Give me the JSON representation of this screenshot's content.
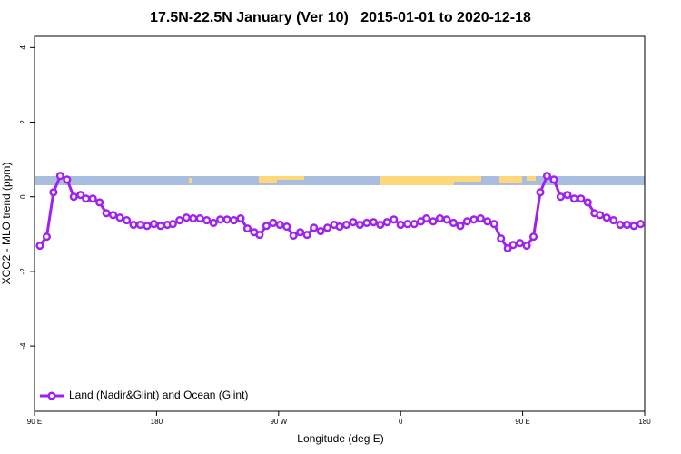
{
  "chart_data": {
    "type": "line",
    "title": "17.5N-22.5N January (Ver 10)   2015-01-01 to 2020-12-18",
    "xlabel": "Longitude (deg E)",
    "ylabel": "XCO2 - MLO trend (ppm)",
    "xlim": [
      90,
      540
    ],
    "ylim": [
      -5.75,
      4.3
    ],
    "xticks": [
      {
        "value": 90,
        "label": "90 E"
      },
      180,
      {
        "value": 270,
        "label": "90 W"
      },
      {
        "value": 360,
        "label": "0"
      },
      {
        "value": 450,
        "label": "90 E"
      },
      {
        "value": 540,
        "label": "180"
      }
    ],
    "yticks": [
      -4,
      -2,
      0,
      2,
      4
    ],
    "legend": "bottom-left",
    "x": [
      94,
      99,
      104,
      109,
      114,
      119,
      124,
      128,
      133,
      138,
      143,
      148,
      153,
      158,
      163,
      168,
      173,
      178,
      183,
      188,
      192,
      197,
      202,
      207,
      212,
      217,
      222,
      227,
      232,
      237,
      242,
      247,
      252,
      256,
      261,
      266,
      271,
      276,
      281,
      286,
      291,
      296,
      301,
      306,
      311,
      315,
      320,
      325,
      330,
      335,
      340,
      345,
      350,
      355,
      360,
      365,
      370,
      375,
      379,
      384,
      389,
      394,
      399,
      404,
      409,
      414,
      419,
      424,
      429,
      434,
      439,
      443,
      448,
      453,
      458,
      463,
      468,
      473,
      478,
      483,
      488,
      493,
      498,
      503,
      507,
      512,
      517,
      522,
      527,
      532,
      537
    ],
    "series": [
      {
        "name": "Land (Nadir&Glint) and Ocean (Glint)",
        "color": "#a020f0",
        "values": [
          -1.31,
          -1.07,
          0.12,
          0.56,
          0.46,
          0,
          0.05,
          -0.05,
          -0.05,
          -0.15,
          -0.44,
          -0.49,
          -0.56,
          -0.63,
          -0.75,
          -0.75,
          -0.78,
          -0.73,
          -0.78,
          -0.75,
          -0.73,
          -0.63,
          -0.56,
          -0.58,
          -0.58,
          -0.63,
          -0.7,
          -0.61,
          -0.61,
          -0.63,
          -0.58,
          -0.85,
          -0.95,
          -1.02,
          -0.78,
          -0.7,
          -0.75,
          -0.8,
          -1.04,
          -0.95,
          -1.02,
          -0.83,
          -0.92,
          -0.83,
          -0.75,
          -0.8,
          -0.75,
          -0.68,
          -0.75,
          -0.7,
          -0.68,
          -0.75,
          -0.68,
          -0.61,
          -0.75,
          -0.73,
          -0.73,
          -0.66,
          -0.58,
          -0.66,
          -0.58,
          -0.61,
          -0.7,
          -0.78,
          -0.66,
          -0.61,
          -0.58,
          -0.66,
          -0.73,
          -1.12,
          -1.38,
          -1.29,
          -1.24,
          -1.31,
          -1.07,
          0.12,
          0.56,
          0.46,
          0,
          0.05,
          -0.05,
          -0.05,
          -0.15,
          -0.44,
          -0.49,
          -0.56,
          -0.63,
          -0.75,
          -0.75,
          -0.78,
          -0.73
        ]
      }
    ]
  }
}
